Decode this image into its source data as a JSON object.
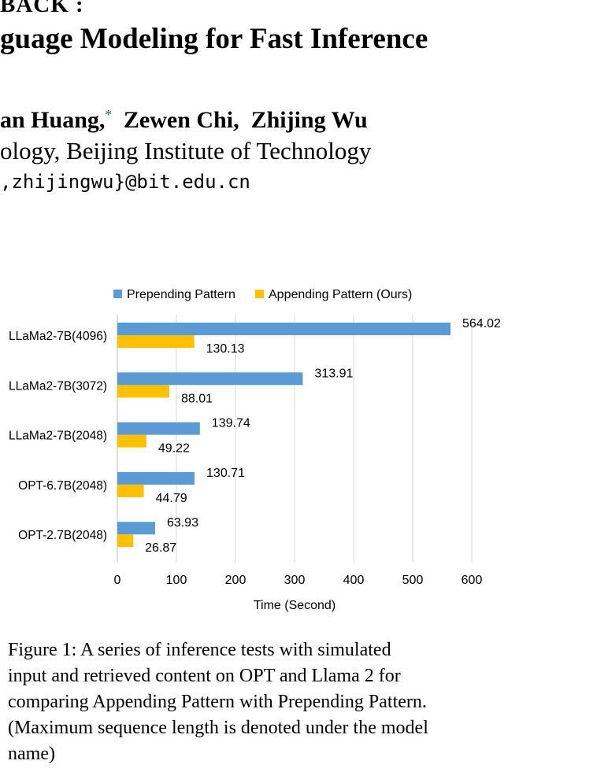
{
  "header": {
    "title_line1": "BACK :",
    "title_line2": "guage Modeling for Fast Inference",
    "authors": [
      {
        "name": "an Huang,",
        "mark": "*"
      },
      {
        "name": "Zewen Chi,",
        "mark": ""
      },
      {
        "name": "Zhijing Wu",
        "mark": ""
      }
    ],
    "affiliation": "ology, Beijing Institute of Technology",
    "email": ",zhijingwu}@bit.edu.cn"
  },
  "chart_data": {
    "type": "bar",
    "orientation": "horizontal",
    "categories": [
      "LLaMa2-7B(4096)",
      "LLaMa2-7B(3072)",
      "LLaMa2-7B(2048)",
      "OPT-6.7B(2048)",
      "OPT-2.7B(2048)"
    ],
    "series": [
      {
        "name": "Prepending Pattern",
        "color": "#5b9bd5",
        "values": [
          564.02,
          313.91,
          139.74,
          130.71,
          63.93
        ]
      },
      {
        "name": "Appending Pattern (Ours)",
        "color": "#ffc000",
        "values": [
          130.13,
          88.01,
          49.22,
          44.79,
          26.87
        ]
      }
    ],
    "xlabel": "Time (Second)",
    "xlim": [
      0,
      600
    ],
    "xticks": [
      0,
      100,
      200,
      300,
      400,
      500,
      600
    ],
    "grid": true,
    "legend": "top"
  },
  "caption": {
    "lines": [
      "Figure 1:  A series of inference tests with simulated",
      "input and retrieved content on OPT and Llama 2 for",
      "comparing Appending Pattern with Prepending Pattern.",
      "(Maximum sequence length is denoted under the model",
      "name)"
    ]
  }
}
